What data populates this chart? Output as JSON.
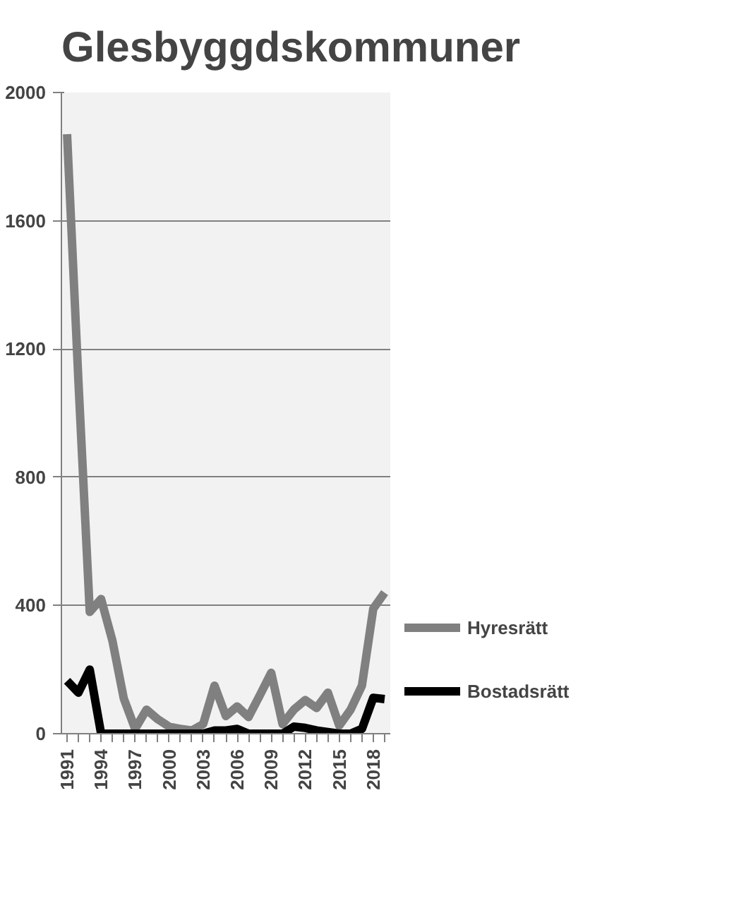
{
  "chart_data": {
    "type": "line",
    "title": "Glesbyggdskommuner",
    "categories": [
      "1991",
      null,
      null,
      "1994",
      null,
      null,
      "1997",
      null,
      null,
      "2000",
      null,
      null,
      "2003",
      null,
      null,
      "2006",
      null,
      null,
      "2009",
      null,
      null,
      "2012",
      null,
      null,
      "2015",
      null,
      null,
      "2018",
      null
    ],
    "series": [
      {
        "name": "Hyresrätt",
        "color": "#808080",
        "values": [
          1870,
          1100,
          380,
          420,
          290,
          110,
          15,
          75,
          45,
          22,
          15,
          10,
          30,
          150,
          55,
          85,
          52,
          120,
          190,
          30,
          75,
          105,
          80,
          128,
          25,
          75,
          150,
          390,
          440
        ]
      },
      {
        "name": "Bostadsrätt",
        "color": "#000000",
        "values": [
          165,
          128,
          200,
          0,
          0,
          0,
          0,
          0,
          0,
          0,
          0,
          0,
          0,
          10,
          10,
          15,
          0,
          0,
          0,
          0,
          22,
          18,
          10,
          5,
          0,
          0,
          15,
          112,
          108
        ]
      }
    ],
    "ylim": [
      0,
      2000
    ],
    "yticks": [
      0,
      400,
      800,
      1200,
      1600,
      2000
    ],
    "grid": "y",
    "legend": "right",
    "marker": "none",
    "line_style": "solid"
  }
}
